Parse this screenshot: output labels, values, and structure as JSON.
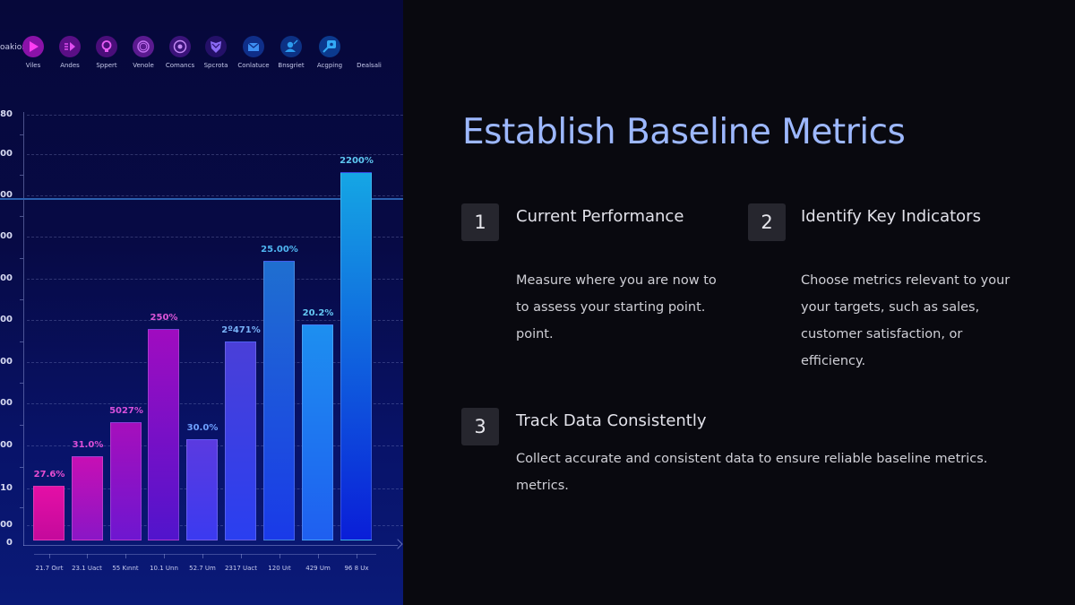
{
  "left_panel": {
    "icon_row": {
      "lead_label": "oakionp",
      "icons": [
        {
          "name": "play-icon",
          "label": "Viles",
          "bg": "#8a12a8",
          "fg": "#ff3df2"
        },
        {
          "name": "forward-icon",
          "label": "Andes",
          "bg": "#5a0f86",
          "fg": "#e04ef0"
        },
        {
          "name": "lightbulb-icon",
          "label": "Sppert",
          "bg": "#4a0e7a",
          "fg": "#e75cf5"
        },
        {
          "name": "ring-icon",
          "label": "Venole",
          "bg": "#5a1a8f",
          "fg": "#c06ff0"
        },
        {
          "name": "target-icon",
          "label": "Comancs",
          "bg": "#3b137a",
          "fg": "#c48af5"
        },
        {
          "name": "shield-icon",
          "label": "Spcrota",
          "bg": "#241068",
          "fg": "#8a6af5"
        },
        {
          "name": "mail-icon",
          "label": "Conlatuce",
          "bg": "#0f2e88",
          "fg": "#3d8ff2"
        },
        {
          "name": "user-edit-icon",
          "label": "Bnsgriet",
          "bg": "#0c3184",
          "fg": "#2d9df0"
        },
        {
          "name": "search-icon",
          "label": "Acgping",
          "bg": "#0b3a8e",
          "fg": "#33aaf5"
        },
        {
          "name": "more-icon",
          "label": "Dealsali",
          "bg": "transparent",
          "fg": "#c4c8ea"
        }
      ]
    }
  },
  "chart_data": {
    "type": "bar",
    "title": "",
    "xlabel": "",
    "ylabel": "",
    "y_tick_labels": [
      "80",
      "00",
      "00",
      "00",
      "00",
      "00",
      "00",
      "00",
      "00",
      "10",
      "00",
      "0"
    ],
    "categories": [
      "21.7 Oırt",
      "23.1 Uact",
      "55 Kınnt",
      "10.1 Unn",
      "52.7 Um",
      "2317 Uact",
      "120 Uıt",
      "429 Um",
      "96 8 Ux"
    ],
    "data_labels": [
      "27.6%",
      "31.0%",
      "5027%",
      "250%",
      "30.0%",
      "2º471%",
      "25.00%",
      "20.2%",
      "2200%"
    ],
    "values": [
      13,
      20,
      28,
      50,
      24,
      47,
      66,
      51,
      87
    ],
    "ylim": [
      0,
      100
    ],
    "grid": true,
    "reference_line": 79,
    "bar_colors_top": [
      "#e40fa6",
      "#c70fb4",
      "#a60fbc",
      "#a00cc0",
      "#5b3ae0",
      "#4a3fd8",
      "#1f6fd0",
      "#1d8ff0",
      "#15a6e4"
    ],
    "bar_colors_bottom": [
      "#c40a9c",
      "#8a16c6",
      "#6e16d0",
      "#5114cc",
      "#3b3af0",
      "#2a3ff0",
      "#1a3ae8",
      "#1f5ff0",
      "#0a1ed8"
    ],
    "label_colors": [
      "#e74ed1",
      "#dc4ed8",
      "#d850dc",
      "#dd55d8",
      "#6ea0ff",
      "#79b2f7",
      "#4fb5f0",
      "#65c8f5",
      "#5ec8f2"
    ]
  },
  "right_panel": {
    "title": "Establish Baseline Metrics",
    "items": [
      {
        "number": "1",
        "title": "Current Performance",
        "desc_lines": [
          "Measure where you are now to",
          "to assess your starting point.",
          "point."
        ]
      },
      {
        "number": "2",
        "title": "Identify Key Indicators",
        "desc_lines": [
          "Choose metrics relevant to your",
          "your targets, such as sales,",
          "customer satisfaction, or",
          "efficiency."
        ]
      },
      {
        "number": "3",
        "title": "Track Data Consistently",
        "desc_lines": [
          "Collect accurate and consistent data to ensure reliable baseline metrics.",
          "metrics."
        ]
      }
    ]
  }
}
